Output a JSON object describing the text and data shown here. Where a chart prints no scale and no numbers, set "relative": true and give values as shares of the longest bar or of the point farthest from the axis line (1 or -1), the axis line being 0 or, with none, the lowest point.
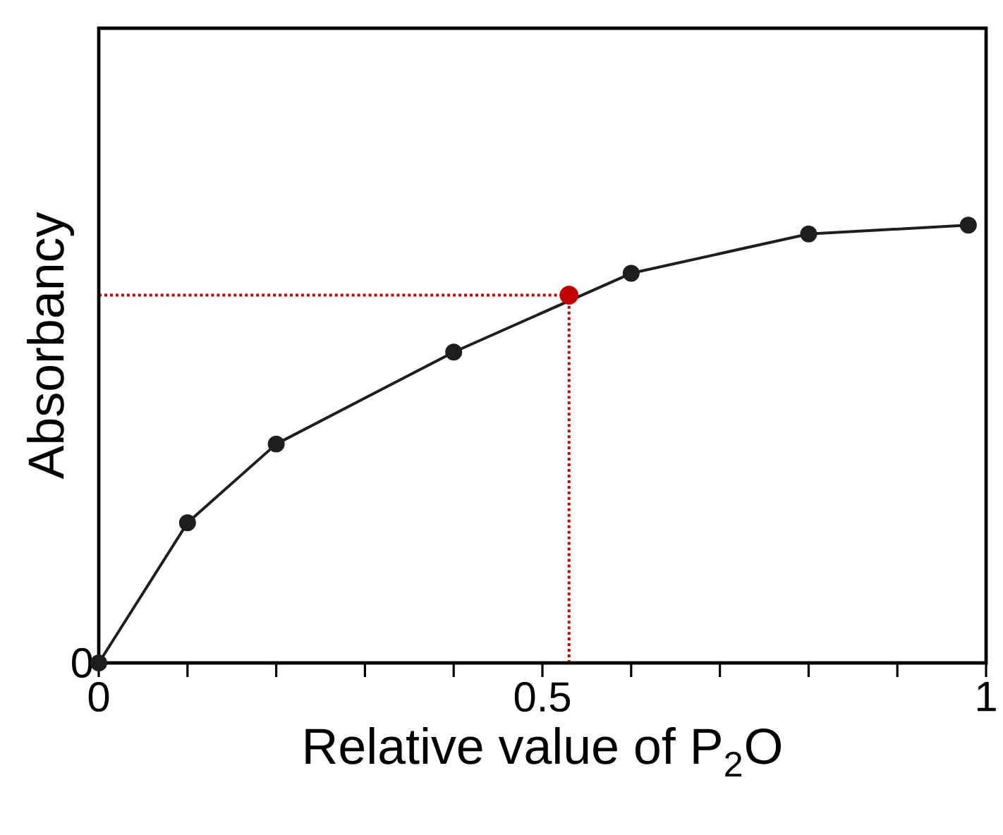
{
  "chart_data": {
    "type": "line",
    "xlabel": "Relative value of P$_{2}$O",
    "ylabel": "Absorbancy",
    "relative": true,
    "xlim": [
      0,
      1
    ],
    "xticks": [
      0,
      {
        "value": 0.1,
        "label": null
      },
      {
        "value": 0.2,
        "label": null
      },
      {
        "value": 0.3,
        "label": null
      },
      {
        "value": 0.4,
        "label": null
      },
      0.5,
      {
        "value": 0.6,
        "label": null
      },
      {
        "value": 0.7,
        "label": null
      },
      {
        "value": 0.8,
        "label": null
      },
      {
        "value": 0.9,
        "label": null
      },
      1
    ],
    "marker": "circle",
    "line_style": "solid",
    "series": [
      {
        "color": "#1e1e1e",
        "x": [
          0,
          0.1,
          0.2,
          0.4,
          0.6,
          0.8,
          0.98
        ],
        "values": [
          0,
          0.32,
          0.5,
          0.71,
          0.89,
          0.98,
          1
        ]
      },
      {
        "type": "scatter",
        "color": "#c00000",
        "x": [
          0.53
        ],
        "values": [
          0.84
        ]
      }
    ],
    "ref_lines": [
      {
        "axis": "x",
        "value": 0.53,
        "color": "#c00000",
        "line_style": "dotted"
      },
      {
        "axis": "y",
        "value": 0.84,
        "color": "#c00000",
        "line_style": "dotted"
      }
    ],
    "annotations": [
      "0"
    ]
  }
}
